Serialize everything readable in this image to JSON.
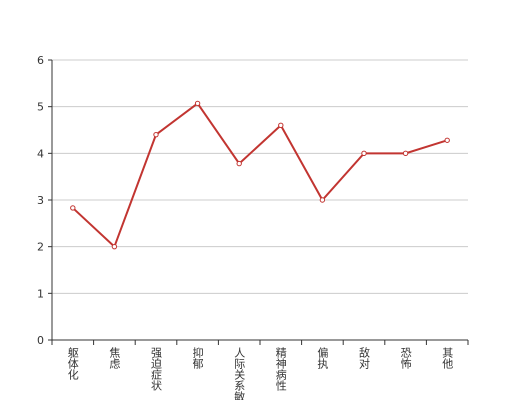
{
  "chart_data": {
    "type": "line",
    "categories": [
      "躯体化",
      "焦虑",
      "强迫症状",
      "抑郁",
      "人际关系敏感",
      "精神病性",
      "偏执",
      "敌对",
      "恐怖",
      "其他"
    ],
    "values": [
      2.83,
      2.0,
      4.4,
      5.07,
      3.78,
      4.6,
      3.0,
      4.0,
      4.0,
      4.28
    ],
    "color": "#c23531",
    "ylim": [
      0,
      6
    ],
    "yticks": [
      0,
      1,
      2,
      3,
      4,
      5,
      6
    ],
    "grid": true
  }
}
